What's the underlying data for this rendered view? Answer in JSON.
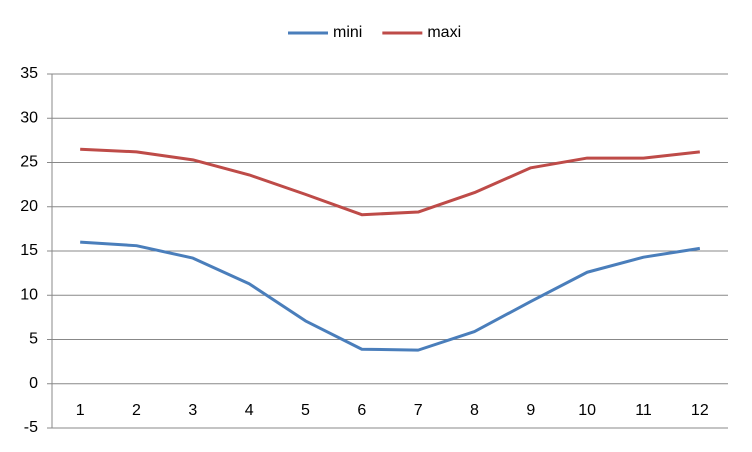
{
  "chart_data": {
    "type": "line",
    "categories": [
      "1",
      "2",
      "3",
      "4",
      "5",
      "6",
      "7",
      "8",
      "9",
      "10",
      "11",
      "12"
    ],
    "series": [
      {
        "name": "mini",
        "color": "#4a7ebb",
        "values": [
          16.0,
          15.6,
          14.2,
          11.3,
          7.1,
          3.9,
          3.8,
          5.9,
          9.3,
          12.6,
          14.3,
          15.3
        ]
      },
      {
        "name": "maxi",
        "color": "#be4b48",
        "values": [
          26.5,
          26.2,
          25.3,
          23.6,
          21.4,
          19.1,
          19.4,
          21.6,
          24.4,
          25.5,
          25.5,
          26.2
        ]
      }
    ],
    "ylim": [
      -5,
      35
    ],
    "yticks": [
      -5,
      0,
      5,
      10,
      15,
      20,
      25,
      30,
      35
    ],
    "grid": true,
    "legend": "top"
  }
}
